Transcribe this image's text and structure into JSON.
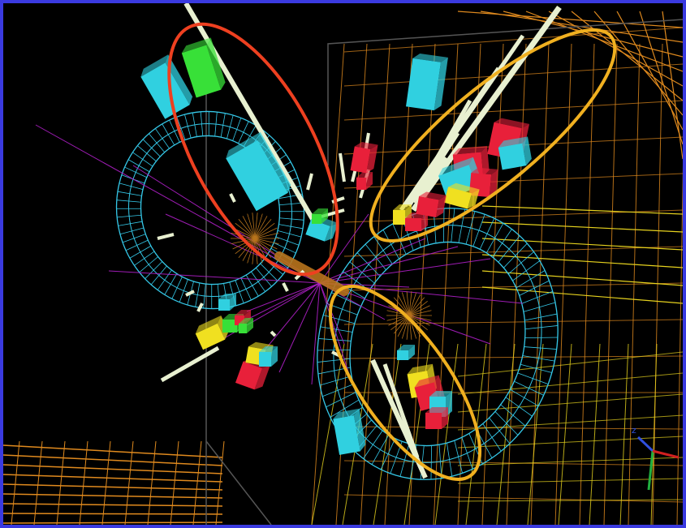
{
  "display": {
    "border_color": "#3a3ae0",
    "background_color": "#000000"
  },
  "detector": {
    "muon_chamber_color": "#e08a1e",
    "muon_chamber_yellow": "#e6d21e",
    "calorimeter_ring_color": "#35c8e8",
    "tracker_color": "#b8741c",
    "track_color": "#b020c8"
  },
  "deposits": {
    "em_color": "#e8203a",
    "hadronic_color": "#30d0e0",
    "high_energy_color": "#38e038",
    "medium_color": "#f0e020",
    "jet_track_color": "#e8f0d0"
  },
  "highlights": [
    {
      "name": "jet-highlight-left",
      "color": "#ee4020"
    },
    {
      "name": "jet-highlight-upper-right",
      "color": "#f0b020"
    },
    {
      "name": "jet-highlight-lower",
      "color": "#f0b020"
    }
  ],
  "axes": {
    "z_label": "z",
    "z_color": "#3050e0",
    "y_color": "#20b040",
    "x_color": "#d02020"
  }
}
